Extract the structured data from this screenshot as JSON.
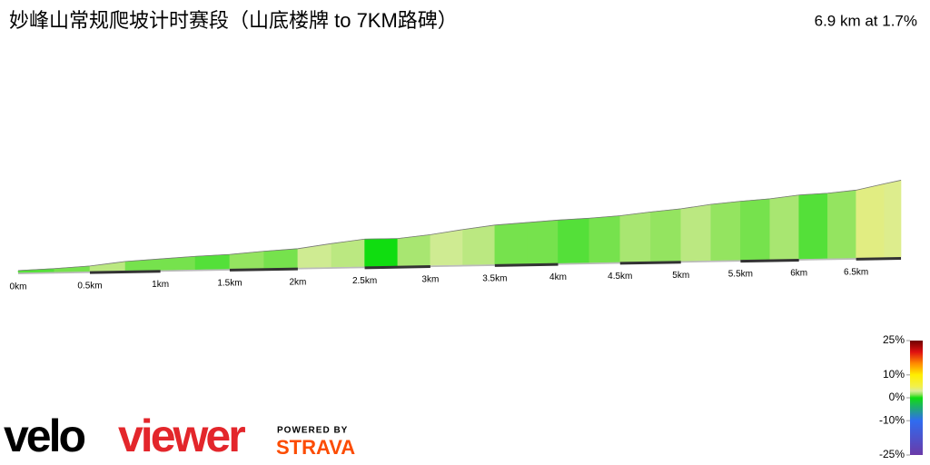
{
  "chart_data": {
    "type": "elevation-profile",
    "title": "妙峰山常规爬坡计时赛段（山底楼牌 to 7KM路碑）",
    "subtitle": "6.9 km at 1.7%",
    "x": [
      0,
      0.25,
      0.5,
      0.75,
      1,
      1.25,
      1.5,
      1.75,
      2,
      2.25,
      2.5,
      2.75,
      3,
      3.25,
      3.5,
      3.75,
      4,
      4.25,
      4.5,
      4.75,
      5,
      5.25,
      5.5,
      5.75,
      6,
      6.25,
      6.5,
      6.75,
      6.9
    ],
    "values": [
      3,
      5,
      8,
      14,
      17,
      20,
      22,
      26,
      29,
      36,
      42,
      42,
      47,
      54,
      60,
      63,
      66,
      68,
      71,
      76,
      80,
      86,
      90,
      93,
      98,
      100,
      104,
      113,
      118
    ],
    "xlim": [
      0,
      6.9
    ],
    "ylim": [
      0,
      120
    ],
    "xticks": [
      {
        "value": 0,
        "label": "0km"
      },
      {
        "value": 0.5,
        "label": "0.5km"
      },
      {
        "value": 1,
        "label": "1km"
      },
      {
        "value": 1.5,
        "label": "1.5km"
      },
      {
        "value": 2,
        "label": "2km"
      },
      {
        "value": 2.5,
        "label": "2.5km"
      },
      {
        "value": 3,
        "label": "3km"
      },
      {
        "value": 3.5,
        "label": "3.5km"
      },
      {
        "value": 4,
        "label": "4km"
      },
      {
        "value": 4.5,
        "label": "4.5km"
      },
      {
        "value": 5,
        "label": "5km"
      },
      {
        "value": 5.5,
        "label": "5.5km"
      },
      {
        "value": 6,
        "label": "6km"
      },
      {
        "value": 6.5,
        "label": "6.5km"
      }
    ],
    "colorscale": {
      "ticks": [
        {
          "value": 25,
          "label": "25%"
        },
        {
          "value": 10,
          "label": "10%"
        },
        {
          "value": 0,
          "label": "0%"
        },
        {
          "value": -10,
          "label": "-10%"
        },
        {
          "value": -25,
          "label": "-25%"
        }
      ],
      "stops": [
        {
          "value": -25,
          "color": "#6a3aa8"
        },
        {
          "value": -10,
          "color": "#2f6cf0"
        },
        {
          "value": 0,
          "color": "#10dd10"
        },
        {
          "value": 1.5,
          "color": "#8fe35c"
        },
        {
          "value": 3,
          "color": "#d9ec9a"
        },
        {
          "value": 5,
          "color": "#f2f04a"
        },
        {
          "value": 10,
          "color": "#ffee00"
        },
        {
          "value": 15,
          "color": "#ff8a00"
        },
        {
          "value": 20,
          "color": "#e01010"
        },
        {
          "value": 25,
          "color": "#6e0000"
        }
      ]
    }
  },
  "branding": {
    "brand_left": "velo",
    "brand_right": "viewer",
    "powered": "POWERED BY",
    "strava": "STRAVA"
  }
}
